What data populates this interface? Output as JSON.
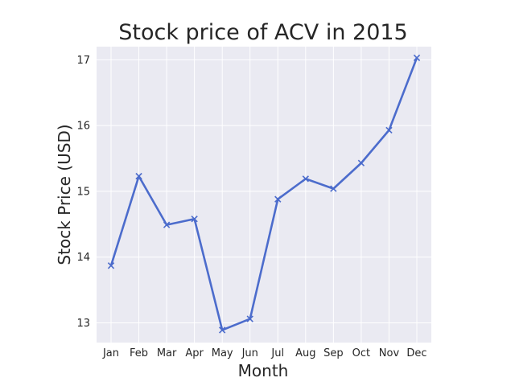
{
  "chart_data": {
    "type": "line",
    "title": "Stock price of ACV in 2015",
    "xlabel": "Month",
    "ylabel": "Stock Price (USD)",
    "categories": [
      "Jan",
      "Feb",
      "Mar",
      "Apr",
      "May",
      "Jun",
      "Jul",
      "Aug",
      "Sep",
      "Oct",
      "Nov",
      "Dec"
    ],
    "series": [
      {
        "name": "ACV",
        "values": [
          13.87,
          15.23,
          14.49,
          14.58,
          12.89,
          13.06,
          14.88,
          15.19,
          15.04,
          15.43,
          15.93,
          17.03
        ],
        "color": "#4c6ccc",
        "marker": "x"
      }
    ],
    "ylim": [
      12.7,
      17.2
    ],
    "yticks": [
      13,
      14,
      15,
      16,
      17
    ],
    "grid": true,
    "background": "#eaeaf2"
  }
}
